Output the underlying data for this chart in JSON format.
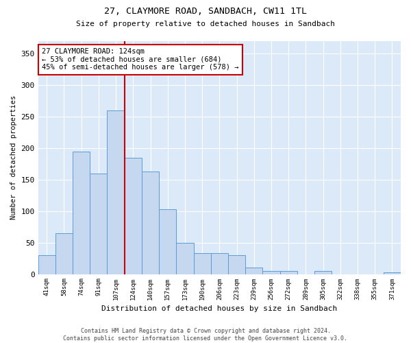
{
  "title": "27, CLAYMORE ROAD, SANDBACH, CW11 1TL",
  "subtitle": "Size of property relative to detached houses in Sandbach",
  "xlabel": "Distribution of detached houses by size in Sandbach",
  "ylabel": "Number of detached properties",
  "categories": [
    "41sqm",
    "58sqm",
    "74sqm",
    "91sqm",
    "107sqm",
    "124sqm",
    "140sqm",
    "157sqm",
    "173sqm",
    "190sqm",
    "206sqm",
    "223sqm",
    "239sqm",
    "256sqm",
    "272sqm",
    "289sqm",
    "305sqm",
    "322sqm",
    "338sqm",
    "355sqm",
    "371sqm"
  ],
  "values": [
    30,
    65,
    195,
    160,
    260,
    185,
    163,
    103,
    50,
    33,
    33,
    30,
    10,
    5,
    5,
    0,
    5,
    0,
    0,
    0,
    3
  ],
  "bar_color": "#c5d8f0",
  "bar_edge_color": "#5b9bd5",
  "property_bin_index": 5,
  "property_line_color": "#cc0000",
  "annotation_line1": "27 CLAYMORE ROAD: 124sqm",
  "annotation_line2": "← 53% of detached houses are smaller (684)",
  "annotation_line3": "45% of semi-detached houses are larger (578) →",
  "annotation_box_color": "#cc0000",
  "background_color": "#dce9f8",
  "footer_text": "Contains HM Land Registry data © Crown copyright and database right 2024.\nContains public sector information licensed under the Open Government Licence v3.0.",
  "ylim": [
    0,
    370
  ],
  "yticks": [
    0,
    50,
    100,
    150,
    200,
    250,
    300,
    350
  ]
}
